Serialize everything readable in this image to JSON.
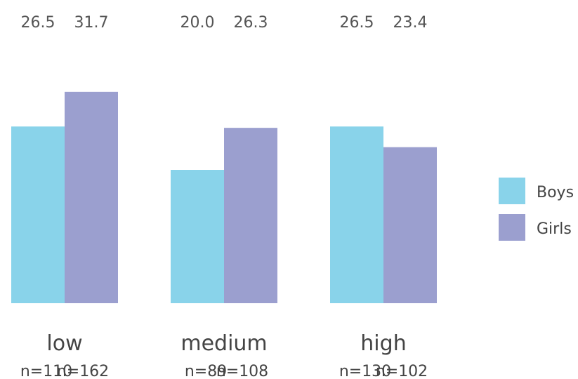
{
  "chart_data": {
    "type": "bar",
    "categories": [
      "low",
      "medium",
      "high"
    ],
    "series": [
      {
        "name": "Boys",
        "values": [
          26.5,
          20.0,
          26.5
        ],
        "labels": [
          "26.5",
          "20.0",
          "26.5"
        ],
        "n_labels": [
          "n=110",
          "n=89",
          "n=130"
        ],
        "color": "#89d3ea"
      },
      {
        "name": "Girls",
        "values": [
          31.7,
          26.3,
          23.4
        ],
        "labels": [
          "31.7",
          "26.3",
          "23.4"
        ],
        "n_labels": [
          "n=162",
          "n=108",
          "n=102"
        ],
        "color": "#9b9fcf"
      }
    ],
    "ylim": [
      0,
      33
    ],
    "legend_position": "right",
    "grid": false,
    "title": "",
    "xlabel": "",
    "ylabel": ""
  }
}
